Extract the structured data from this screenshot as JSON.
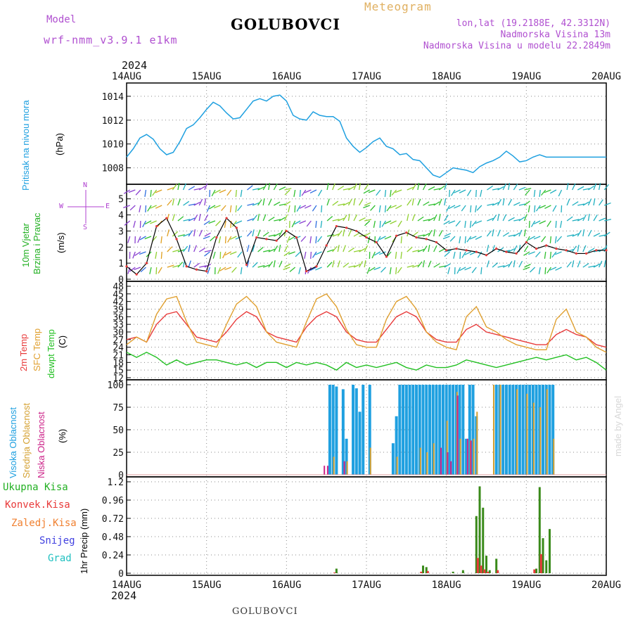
{
  "header": {
    "model_label": "Model",
    "model_name": "wrf-nmm_v3.9.1 e1km",
    "station": "GOLUBOVCI",
    "product": "Meteogram",
    "coords": "lon,lat (19.2188E, 42.3312N)",
    "elevation": "Nadmorska Visina 13m",
    "model_elevation": "Nadmorska Visina u modelu 22.2849m",
    "year_top": "2024",
    "year_bottom": "2024",
    "footer_station": "GOLUBOVCI",
    "credit": "made by Angel"
  },
  "colors": {
    "pressure": "#1fa0e0",
    "temp2m": "#e83a3a",
    "sfc_temp": "#e0a030",
    "dewpt": "#22c022",
    "cloud_high": "#1fa0e0",
    "cloud_mid": "#d4a030",
    "cloud_low": "#cc2288",
    "precip_total": "#3a8a1a",
    "precip_conv": "#e83a3a",
    "precip_freezing": "#f08030",
    "snow": "#4040e0",
    "hail": "#20c0c0",
    "wind_legend": "#b040d0"
  },
  "chart_data": [
    {
      "type": "line",
      "title": "",
      "panel_labels": [
        "Pritisak na nivou mora",
        "(hPa)"
      ],
      "x_ticks": [
        "14AUG",
        "15AUG",
        "16AUG",
        "17AUG",
        "18AUG",
        "19AUG",
        "20AUG"
      ],
      "xlim_hours": [
        0,
        144
      ],
      "ylim": [
        1006.8,
        1014.7
      ],
      "y_ticks": [
        1008,
        1010,
        1012,
        1014
      ],
      "grid": true,
      "series": [
        {
          "name": "Pritisak na nivou mora",
          "color_key": "pressure",
          "x": [
            0,
            2,
            4,
            6,
            8,
            10,
            12,
            14,
            16,
            18,
            20,
            22,
            24,
            26,
            28,
            30,
            32,
            34,
            36,
            38,
            40,
            42,
            44,
            46,
            48,
            50,
            52,
            54,
            56,
            58,
            60,
            62,
            64,
            66,
            68,
            70,
            72,
            74,
            76,
            78,
            80,
            82,
            84,
            86,
            88,
            90,
            92,
            94,
            96,
            98,
            100,
            102,
            104,
            106,
            108,
            110,
            112,
            114,
            116,
            118,
            120,
            122,
            124,
            126,
            128,
            130,
            132,
            134,
            136,
            138,
            140,
            142,
            144
          ],
          "values": [
            1008.9,
            1009.6,
            1010.5,
            1010.8,
            1010.4,
            1009.6,
            1009.1,
            1009.3,
            1010.2,
            1011.3,
            1011.6,
            1012.2,
            1012.9,
            1013.5,
            1013.2,
            1012.6,
            1012.1,
            1012.2,
            1012.9,
            1013.6,
            1013.8,
            1013.6,
            1014.0,
            1014.1,
            1013.6,
            1012.4,
            1012.1,
            1012.0,
            1012.7,
            1012.4,
            1012.3,
            1012.3,
            1011.9,
            1010.5,
            1009.8,
            1009.3,
            1009.7,
            1010.2,
            1010.5,
            1009.8,
            1009.6,
            1009.1,
            1009.2,
            1008.7,
            1008.6,
            1008.0,
            1007.4,
            1007.2,
            1007.6,
            1008.0,
            1007.9,
            1007.8,
            1007.6,
            1008.1,
            1008.4,
            1008.6,
            1008.9,
            1009.4,
            1009.0,
            1008.5,
            1008.6,
            1008.9,
            1009.1,
            1008.9,
            1008.9,
            1008.9,
            1008.9,
            1008.9,
            1008.9,
            1008.9,
            1008.9,
            1008.9,
            1008.9
          ]
        }
      ]
    },
    {
      "type": "line",
      "title": "",
      "panel_labels": [
        "10m Vjetar",
        "Brzina i Pravac",
        "(m/s)"
      ],
      "compass": {
        "north": "N",
        "south": "S",
        "east": "E",
        "west": "W"
      },
      "xlim_hours": [
        0,
        144
      ],
      "ylim": [
        0,
        5.6
      ],
      "y_ticks": [
        0,
        1,
        2,
        3,
        4,
        5
      ],
      "grid": true,
      "series": [
        {
          "name": "10m Vjetar",
          "color_key": "wind",
          "x": [
            0,
            3,
            6,
            9,
            12,
            15,
            18,
            21,
            24,
            27,
            30,
            33,
            36,
            39,
            42,
            45,
            48,
            51,
            54,
            57,
            60,
            63,
            66,
            69,
            72,
            75,
            78,
            81,
            84,
            87,
            90,
            93,
            96,
            99,
            102,
            105,
            108,
            111,
            114,
            117,
            120,
            123,
            126,
            129,
            132,
            135,
            138,
            141,
            144
          ],
          "values": [
            0.8,
            0.3,
            1.0,
            3.3,
            3.8,
            2.5,
            0.8,
            0.6,
            0.5,
            2.6,
            3.8,
            3.2,
            0.9,
            2.6,
            2.5,
            2.4,
            3.0,
            2.6,
            0.5,
            0.8,
            2.1,
            3.3,
            3.2,
            3.0,
            2.6,
            2.3,
            1.4,
            2.7,
            2.9,
            2.6,
            2.5,
            2.3,
            1.8,
            1.9,
            1.8,
            1.7,
            1.5,
            1.9,
            1.7,
            1.6,
            2.3,
            1.9,
            2.1,
            1.9,
            1.8,
            1.6,
            1.6,
            1.8,
            1.8
          ]
        }
      ]
    },
    {
      "type": "line",
      "title": "",
      "panel_labels": [
        "2m Temp",
        "SFC Temp",
        "dewpt Temp",
        "(C)"
      ],
      "xlim_hours": [
        0,
        144
      ],
      "ylim": [
        12,
        48
      ],
      "y_ticks": [
        12,
        15,
        18,
        21,
        24,
        27,
        30,
        33,
        36,
        39,
        42,
        45,
        48
      ],
      "grid": true,
      "series": [
        {
          "name": "2m Temp",
          "color_key": "temp2m",
          "x": [
            0,
            3,
            6,
            9,
            12,
            15,
            18,
            21,
            24,
            27,
            30,
            33,
            36,
            39,
            42,
            45,
            48,
            51,
            54,
            57,
            60,
            63,
            66,
            69,
            72,
            75,
            78,
            81,
            84,
            87,
            90,
            93,
            96,
            99,
            102,
            105,
            108,
            111,
            114,
            117,
            120,
            123,
            126,
            129,
            132,
            135,
            138,
            141,
            144
          ],
          "values": [
            27,
            28,
            26,
            33,
            37,
            38,
            33,
            28,
            27,
            26,
            30,
            35,
            38,
            36,
            30,
            28,
            27,
            26,
            32,
            36,
            38,
            36,
            30,
            27,
            26,
            26,
            31,
            36,
            38,
            36,
            30,
            27,
            26,
            26,
            31,
            33,
            30,
            29,
            28,
            27,
            26,
            25,
            25,
            29,
            31,
            29,
            28,
            25,
            24
          ]
        },
        {
          "name": "SFC Temp",
          "color_key": "sfc_temp",
          "x": [
            0,
            3,
            6,
            9,
            12,
            15,
            18,
            21,
            24,
            27,
            30,
            33,
            36,
            39,
            42,
            45,
            48,
            51,
            54,
            57,
            60,
            63,
            66,
            69,
            72,
            75,
            78,
            81,
            84,
            87,
            90,
            93,
            96,
            99,
            102,
            105,
            108,
            111,
            114,
            117,
            120,
            123,
            126,
            129,
            132,
            135,
            138,
            141,
            144
          ],
          "values": [
            25,
            28,
            26,
            37,
            43,
            44,
            34,
            26,
            25,
            24,
            33,
            41,
            44,
            40,
            30,
            26,
            25,
            24,
            34,
            43,
            45,
            40,
            31,
            25,
            24,
            24,
            35,
            42,
            44,
            39,
            30,
            26,
            24,
            23,
            36,
            40,
            32,
            30,
            27,
            25,
            24,
            23,
            23,
            35,
            39,
            30,
            28,
            24,
            22
          ]
        },
        {
          "name": "dewpt Temp",
          "color_key": "dewpt",
          "x": [
            0,
            3,
            6,
            9,
            12,
            15,
            18,
            21,
            24,
            27,
            30,
            33,
            36,
            39,
            42,
            45,
            48,
            51,
            54,
            57,
            60,
            63,
            66,
            69,
            72,
            75,
            78,
            81,
            84,
            87,
            90,
            93,
            96,
            99,
            102,
            105,
            108,
            111,
            114,
            117,
            120,
            123,
            126,
            129,
            132,
            135,
            138,
            141,
            144
          ],
          "values": [
            22,
            20,
            22,
            20,
            17,
            19,
            17,
            18,
            19,
            19,
            18,
            17,
            18,
            16,
            18,
            18,
            16,
            18,
            17,
            18,
            17,
            15,
            18,
            16,
            17,
            16,
            17,
            18,
            16,
            15,
            17,
            16,
            16,
            17,
            19,
            18,
            17,
            16,
            17,
            18,
            19,
            20,
            19,
            20,
            21,
            19,
            20,
            18,
            15
          ]
        }
      ]
    },
    {
      "type": "bar",
      "title": "",
      "panel_labels": [
        "Visoka Oblacnost",
        "Srednja Oblacnost",
        "Niska Oblacnost",
        "(%)"
      ],
      "xlim_hours": [
        0,
        144
      ],
      "ylim": [
        0,
        100
      ],
      "y_ticks": [
        0,
        25,
        50,
        75,
        100
      ],
      "grid": true,
      "series": [
        {
          "name": "Visoka Oblacnost",
          "color_key": "cloud_high",
          "x": [
            61,
            62,
            63,
            65,
            66,
            68,
            69,
            70,
            71,
            73,
            80,
            81,
            82,
            83,
            84,
            85,
            86,
            87,
            88,
            89,
            90,
            91,
            92,
            93,
            94,
            95,
            96,
            97,
            98,
            99,
            100,
            101,
            102,
            103,
            104,
            105,
            111,
            112,
            113,
            114,
            115,
            116,
            117,
            118,
            119,
            120,
            121,
            122,
            123,
            124,
            125,
            126,
            127,
            128
          ],
          "values": [
            100,
            100,
            98,
            95,
            40,
            100,
            96,
            70,
            100,
            100,
            35,
            65,
            100,
            100,
            100,
            100,
            100,
            100,
            100,
            100,
            100,
            100,
            100,
            100,
            100,
            100,
            100,
            100,
            100,
            100,
            100,
            100,
            40,
            100,
            100,
            65,
            100,
            100,
            100,
            100,
            100,
            100,
            100,
            100,
            100,
            100,
            100,
            100,
            100,
            100,
            100,
            100,
            100,
            100
          ]
        },
        {
          "name": "Srednja Oblacnost",
          "color_key": "cloud_mid",
          "x": [
            62,
            66,
            73,
            81,
            88,
            90,
            92,
            96,
            99,
            100,
            103,
            104,
            105,
            110,
            112,
            117,
            120,
            122,
            124,
            126,
            128
          ],
          "values": [
            20,
            15,
            30,
            20,
            30,
            25,
            35,
            60,
            92,
            40,
            38,
            40,
            70,
            100,
            100,
            95,
            90,
            80,
            75,
            95,
            40
          ]
        },
        {
          "name": "Niska Oblacnost",
          "color_key": "cloud_low",
          "x": [
            60,
            61,
            66,
            95,
            97,
            98,
            100,
            103,
            104
          ],
          "values": [
            10,
            10,
            15,
            30,
            25,
            15,
            88,
            40,
            38
          ]
        }
      ]
    },
    {
      "type": "bar",
      "title": "",
      "panel_labels": [
        "Ukupna Kisa",
        "Konvek.Kisa",
        "Zaledj.Kisa",
        "Snijeg",
        "Grad",
        "1hr Precip (mm)"
      ],
      "xlim_hours": [
        0,
        144
      ],
      "ylim": [
        0,
        1.2
      ],
      "y_ticks": [
        0,
        0.24,
        0.48,
        0.72,
        0.96,
        1.2
      ],
      "grid": true,
      "series": [
        {
          "name": "Ukupna Kisa",
          "color_key": "precip_total",
          "x": [
            63,
            89,
            90,
            98,
            101,
            105,
            106,
            107,
            108,
            109,
            111,
            123,
            124,
            125,
            126,
            127
          ],
          "values": [
            0.06,
            0.1,
            0.08,
            0.02,
            0.04,
            0.75,
            1.14,
            0.86,
            0.23,
            0.04,
            0.19,
            0.06,
            1.13,
            0.46,
            0.17,
            0.58
          ]
        },
        {
          "name": "Konvek.Kisa",
          "color_key": "precip_conv",
          "x": [
            62,
            88,
            90,
            105,
            106,
            107,
            108,
            111,
            122,
            124
          ],
          "values": [
            0.01,
            0.02,
            0.03,
            0.2,
            0.1,
            0.05,
            0.02,
            0.04,
            0.05,
            0.25
          ]
        }
      ]
    }
  ]
}
